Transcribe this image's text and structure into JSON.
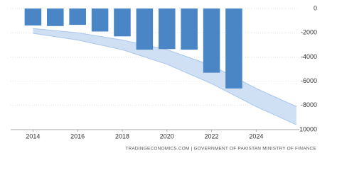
{
  "chart_data": {
    "type": "bar",
    "x": [
      2014,
      2015,
      2016,
      2017,
      2018,
      2019,
      2020,
      2021,
      2022,
      2023
    ],
    "values": [
      -1400,
      -1450,
      -1350,
      -1900,
      -2300,
      -3400,
      -3350,
      -3400,
      -5300,
      -6600
    ],
    "color": "#4a86c5",
    "band": {
      "x": [
        2014,
        2016,
        2018,
        2020,
        2022,
        2024,
        2025.8
      ],
      "upper": [
        -1650,
        -2000,
        -2600,
        -3400,
        -4700,
        -6600,
        -8100
      ],
      "lower": [
        -2050,
        -2600,
        -3400,
        -4600,
        -6200,
        -8100,
        -9600
      ],
      "color": "#cfe0f4",
      "edge_color": "#a9c6ea"
    },
    "xlim": [
      2013,
      2025.9
    ],
    "xticks": [
      2014,
      2016,
      2018,
      2020,
      2022,
      2024
    ],
    "ylim": [
      -10000,
      0
    ],
    "yticks": [
      0,
      -2000,
      -4000,
      -6000,
      -8000,
      -10000
    ],
    "grid": true,
    "source": "TRADINGECONOMICS.COM | GOVERNMENT OF PAKISTAN MINISTRY OF FINANCE"
  }
}
